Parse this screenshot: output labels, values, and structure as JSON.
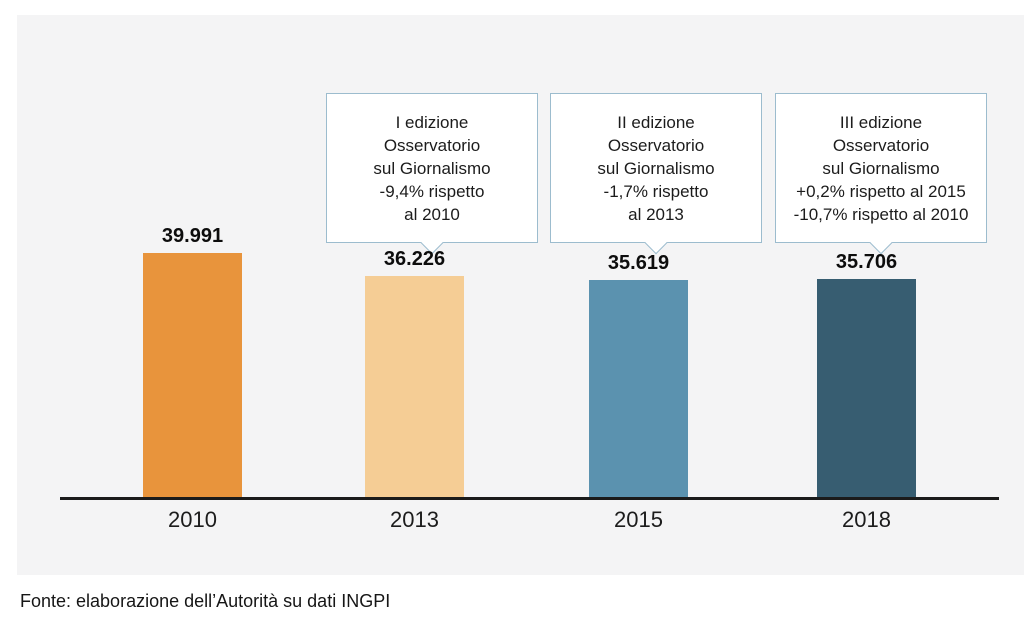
{
  "chart_data": {
    "type": "bar",
    "title": "",
    "xlabel": "",
    "ylabel": "",
    "categories": [
      "2010",
      "2013",
      "2015",
      "2018"
    ],
    "values": [
      39991,
      36226,
      35619,
      35706
    ],
    "value_labels": [
      "39.991",
      "36.226",
      "35.619",
      "35.706"
    ],
    "bar_colors": [
      "#E8943C",
      "#F5CD95",
      "#5B92AF",
      "#375D71"
    ],
    "ylim": [
      0,
      39991
    ],
    "grid": false,
    "legend": "none",
    "annotations": [
      {
        "target": "2013",
        "lines": [
          "I edizione",
          "Osservatorio",
          "sul Giornalismo",
          "-9,4% rispetto",
          "al 2010"
        ]
      },
      {
        "target": "2015",
        "lines": [
          "II edizione",
          "Osservatorio",
          "sul Giornalismo",
          "-1,7% rispetto",
          "al 2013"
        ]
      },
      {
        "target": "2018",
        "lines": [
          "III edizione",
          "Osservatorio",
          "sul Giornalismo",
          "+0,2% rispetto al 2015",
          "-10,7% rispetto al 2010"
        ]
      }
    ]
  },
  "footer": {
    "source": "Fonte: elaborazione dell’Autorità su dati INGPI"
  },
  "colors": {
    "panel_background": "#f4f4f5",
    "callout_border": "#9cbcce",
    "axis": "#1b1b1b"
  }
}
